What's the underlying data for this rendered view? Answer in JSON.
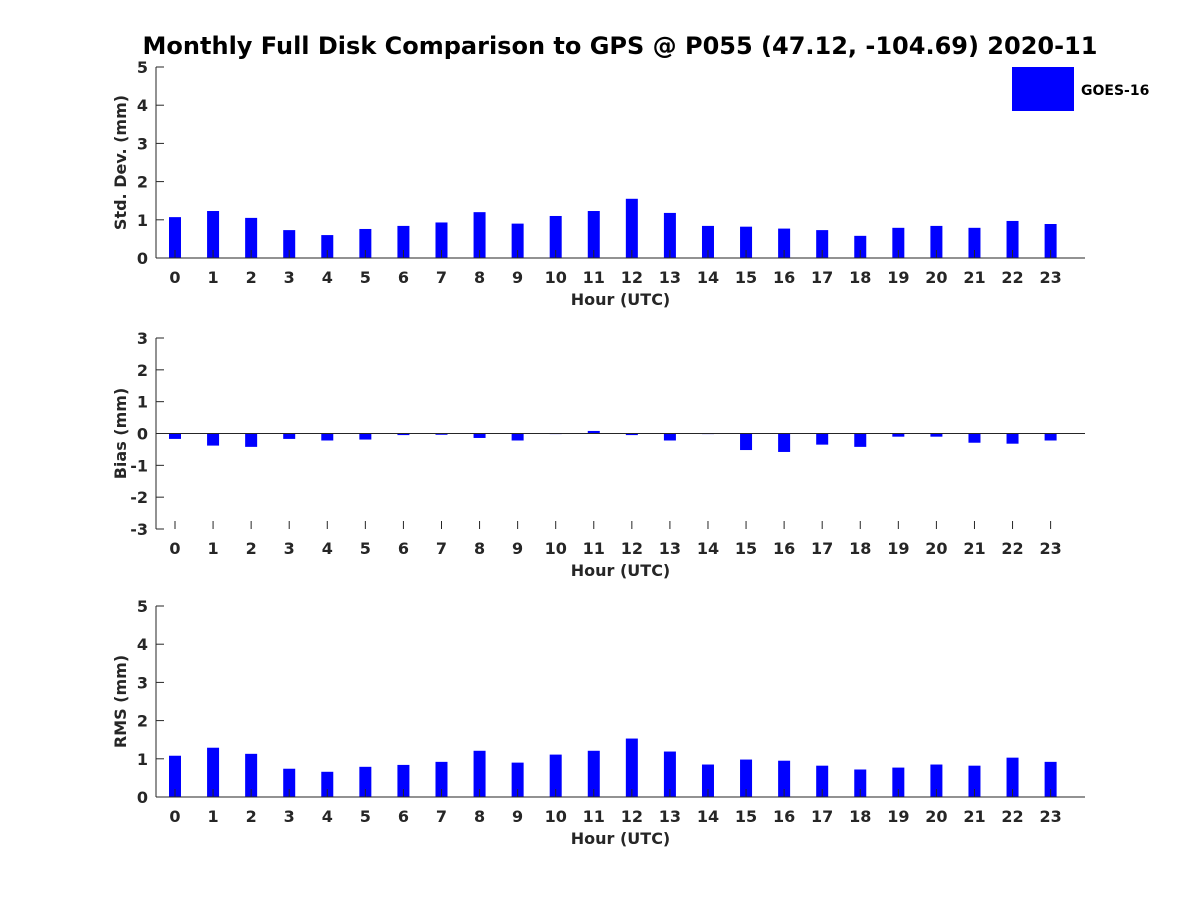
{
  "title": "Monthly Full Disk Comparison to GPS @ P055 (47.12, -104.69) 2020-11",
  "colors": {
    "bar": "#0000ff",
    "axis": "#262626",
    "background": "#ffffff"
  },
  "legend": {
    "label": "GOES-16",
    "placement": "top-right"
  },
  "chart_data": [
    {
      "type": "bar",
      "title": "",
      "xlabel": "Hour (UTC)",
      "ylabel": "Std. Dev. (mm)",
      "ylim": [
        0,
        5
      ],
      "yticks": [
        0,
        1,
        2,
        3,
        4,
        5
      ],
      "grid": false,
      "categories": [
        "0",
        "1",
        "2",
        "3",
        "4",
        "5",
        "6",
        "7",
        "8",
        "9",
        "10",
        "11",
        "12",
        "13",
        "14",
        "15",
        "16",
        "17",
        "18",
        "19",
        "20",
        "21",
        "22",
        "23"
      ],
      "series": [
        {
          "name": "GOES-16",
          "values": [
            1.07,
            1.23,
            1.05,
            0.73,
            0.6,
            0.76,
            0.84,
            0.93,
            1.2,
            0.9,
            1.1,
            1.23,
            1.55,
            1.18,
            0.84,
            0.82,
            0.77,
            0.73,
            0.58,
            0.79,
            0.84,
            0.79,
            0.97,
            0.89
          ]
        }
      ]
    },
    {
      "type": "bar",
      "title": "",
      "xlabel": "Hour (UTC)",
      "ylabel": "Bias (mm)",
      "ylim": [
        -3,
        3
      ],
      "yticks": [
        -3,
        -2,
        -1,
        0,
        1,
        2,
        3
      ],
      "grid": false,
      "categories": [
        "0",
        "1",
        "2",
        "3",
        "4",
        "5",
        "6",
        "7",
        "8",
        "9",
        "10",
        "11",
        "12",
        "13",
        "14",
        "15",
        "16",
        "17",
        "18",
        "19",
        "20",
        "21",
        "22",
        "23"
      ],
      "series": [
        {
          "name": "GOES-16",
          "values": [
            -0.17,
            -0.38,
            -0.42,
            -0.17,
            -0.22,
            -0.19,
            -0.05,
            -0.04,
            -0.14,
            -0.22,
            -0.01,
            0.08,
            -0.05,
            -0.22,
            0.0,
            -0.52,
            -0.58,
            -0.35,
            -0.42,
            -0.1,
            -0.1,
            -0.29,
            -0.32,
            -0.22
          ]
        }
      ]
    },
    {
      "type": "bar",
      "title": "",
      "xlabel": "Hour (UTC)",
      "ylabel": "RMS (mm)",
      "ylim": [
        0,
        5
      ],
      "yticks": [
        0,
        1,
        2,
        3,
        4,
        5
      ],
      "grid": false,
      "categories": [
        "0",
        "1",
        "2",
        "3",
        "4",
        "5",
        "6",
        "7",
        "8",
        "9",
        "10",
        "11",
        "12",
        "13",
        "14",
        "15",
        "16",
        "17",
        "18",
        "19",
        "20",
        "21",
        "22",
        "23"
      ],
      "series": [
        {
          "name": "GOES-16",
          "values": [
            1.08,
            1.29,
            1.13,
            0.74,
            0.66,
            0.79,
            0.84,
            0.92,
            1.21,
            0.9,
            1.11,
            1.21,
            1.53,
            1.19,
            0.85,
            0.98,
            0.95,
            0.82,
            0.72,
            0.77,
            0.85,
            0.82,
            1.03,
            0.92
          ]
        }
      ]
    }
  ]
}
